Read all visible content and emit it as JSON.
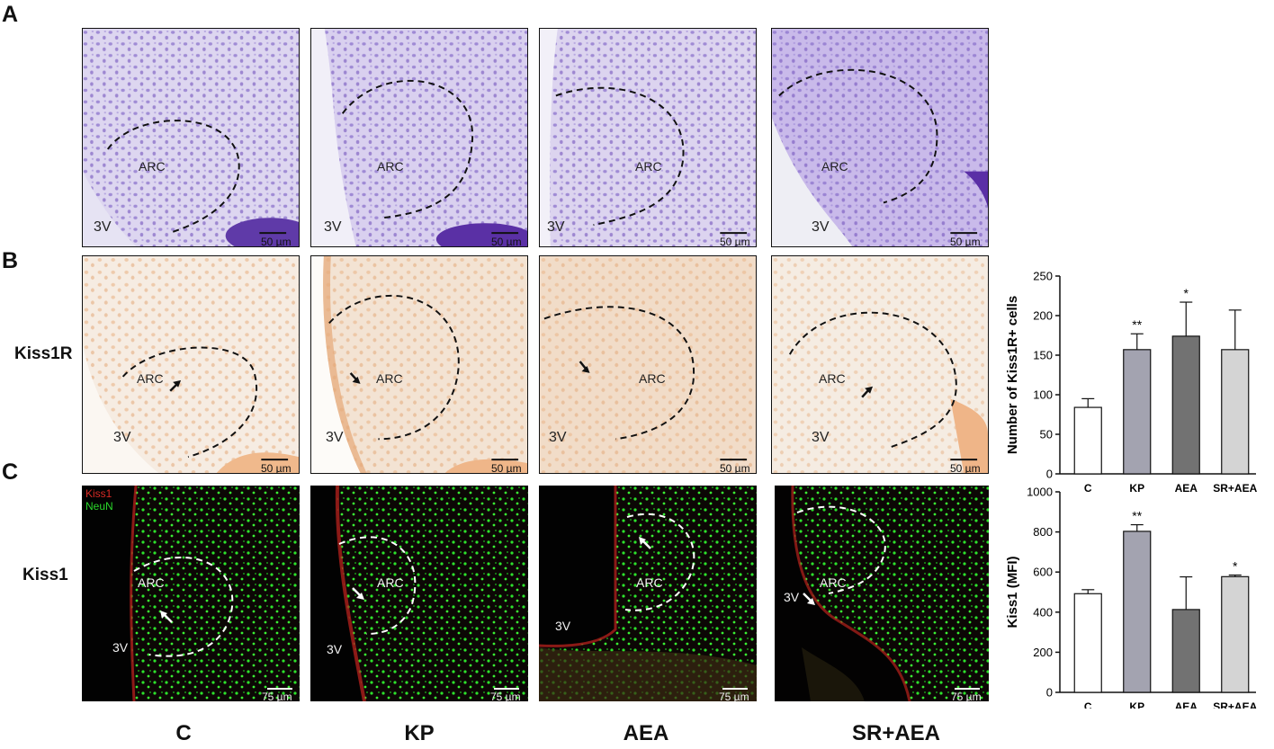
{
  "panel_letters": {
    "a": "A",
    "b": "B",
    "c": "C"
  },
  "row_labels": {
    "kiss1r": "Kiss1R",
    "kiss1": "Kiss1"
  },
  "columns": [
    "C",
    "KP",
    "AEA",
    "SR+AEA"
  ],
  "region_labels": {
    "arc": "ARC",
    "third_ventricle": "3V"
  },
  "scale_bars": {
    "row_a": "50 µm",
    "row_b": "50 µm",
    "row_c": "75 µm"
  },
  "fluorescence_legend": {
    "kiss1": "Kiss1",
    "neun": "NeuN"
  },
  "colors": {
    "nissl_bg": "#e6e3f3",
    "nissl_cells": "#7b5cc0",
    "ihc_bg": "#f4e6d8",
    "ihc_cells": "#e8b48a",
    "fluor_bg": "#0d0805",
    "neun_green": "#29e02a",
    "kiss1_red": "#c8231f",
    "bar_c": "#ffffff",
    "bar_kp": "#a3a3b0",
    "bar_aea": "#727272",
    "bar_sraea": "#d4d4d4"
  },
  "chart_data": [
    {
      "type": "bar",
      "categories": [
        "C",
        "KP",
        "AEA",
        "SR+AEA"
      ],
      "values": [
        84,
        157,
        174,
        157
      ],
      "errors": [
        11,
        20,
        43,
        50
      ],
      "significance": [
        "",
        "**",
        "*",
        ""
      ],
      "ylabel": "Number of Kiss1R+ cells",
      "ylim": [
        0,
        250
      ],
      "yticks": [
        0,
        50,
        100,
        150,
        200,
        250
      ]
    },
    {
      "type": "bar",
      "categories": [
        "C",
        "KP",
        "AEA",
        "SR+AEA"
      ],
      "values": [
        492,
        803,
        413,
        577
      ],
      "errors": [
        20,
        33,
        163,
        8
      ],
      "significance": [
        "",
        "**",
        "",
        "*"
      ],
      "ylabel": "Kiss1 (MFI)",
      "ylim": [
        0,
        1000
      ],
      "yticks": [
        0,
        200,
        400,
        600,
        800,
        1000
      ]
    }
  ]
}
